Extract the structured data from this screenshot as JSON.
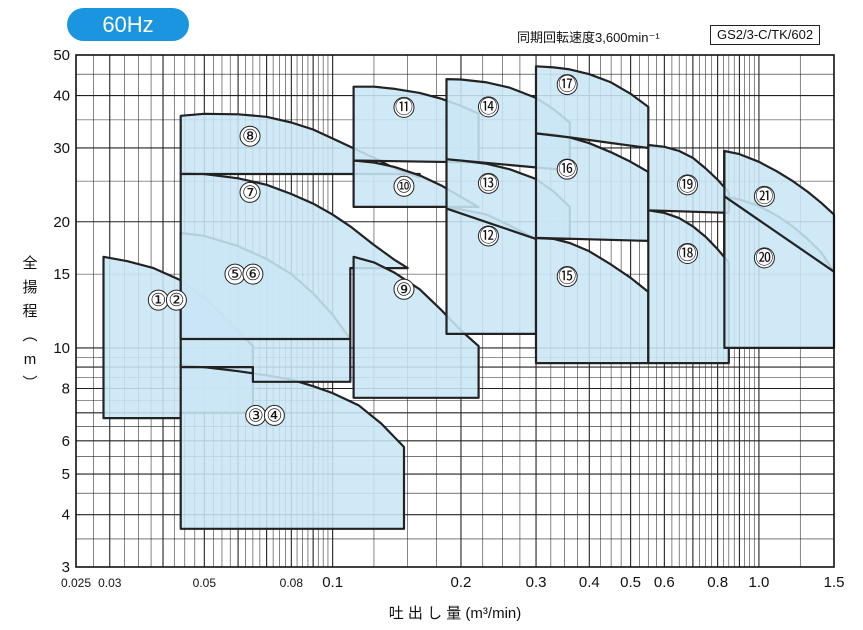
{
  "badge_label": "60Hz",
  "speed_label": "同期回転速度3,600min⁻¹",
  "model_label": "GS2/3-C/TK/602",
  "colors": {
    "badge": "#1a95e0",
    "region_fill": "#c9e6f6",
    "region_stroke": "#222222",
    "grid": "#222222"
  },
  "chart_data": {
    "type": "area",
    "title": "",
    "xlabel": "吐 出 し 量 (m³/min)",
    "ylabel": "全 揚 程 (m)",
    "x_scale": "log",
    "y_scale": "log",
    "xlim": [
      0.025,
      1.5
    ],
    "ylim": [
      3,
      50
    ],
    "grid": true,
    "x_ticks": [
      {
        "value": 0.025,
        "label": "0.025"
      },
      {
        "value": 0.03,
        "label": "0.03"
      },
      {
        "value": 0.05,
        "label": "0.05"
      },
      {
        "value": 0.08,
        "label": "0.08"
      },
      {
        "value": 0.1,
        "label": "0.1"
      },
      {
        "value": 0.2,
        "label": "0.2"
      },
      {
        "value": 0.3,
        "label": "0.3"
      },
      {
        "value": 0.4,
        "label": "0.4"
      },
      {
        "value": 0.5,
        "label": "0.5"
      },
      {
        "value": 0.6,
        "label": "0.6"
      },
      {
        "value": 0.8,
        "label": "0.8"
      },
      {
        "value": 1.0,
        "label": "1.0"
      },
      {
        "value": 1.5,
        "label": "1.5"
      }
    ],
    "y_ticks": [
      {
        "value": 3,
        "label": "3"
      },
      {
        "value": 4,
        "label": "4"
      },
      {
        "value": 5,
        "label": "5"
      },
      {
        "value": 6,
        "label": "6"
      },
      {
        "value": 8,
        "label": "8"
      },
      {
        "value": 10,
        "label": "10"
      },
      {
        "value": 15,
        "label": "15"
      },
      {
        "value": 20,
        "label": "20"
      },
      {
        "value": 30,
        "label": "30"
      },
      {
        "value": 40,
        "label": "40"
      },
      {
        "value": 50,
        "label": "50"
      }
    ],
    "regions": [
      {
        "labels": [
          "①",
          "②"
        ],
        "label_at": [
          [
            0.039,
            13.0
          ],
          [
            0.043,
            13.0
          ]
        ],
        "x": [
          0.029,
          0.033,
          0.038,
          0.044,
          0.05,
          0.056,
          0.061,
          0.065,
          0.065,
          0.044,
          0.044,
          0.029
        ],
        "y": [
          16.5,
          16.1,
          15.5,
          14.5,
          13.2,
          11.8,
          10.8,
          10.1,
          7.0,
          7.0,
          6.8,
          6.8
        ]
      },
      {
        "labels": [
          "③",
          "④"
        ],
        "label_at": [
          [
            0.066,
            6.9
          ],
          [
            0.073,
            6.9
          ]
        ],
        "x": [
          0.044,
          0.05,
          0.06,
          0.07,
          0.08,
          0.09,
          0.1,
          0.115,
          0.13,
          0.147,
          0.147,
          0.044
        ],
        "y": [
          9.1,
          9.0,
          8.8,
          8.6,
          8.4,
          8.1,
          7.8,
          7.3,
          6.6,
          5.8,
          3.7,
          3.7
        ]
      },
      {
        "labels": [
          "⑤",
          "⑥"
        ],
        "label_at": [
          [
            0.059,
            15.0
          ],
          [
            0.065,
            15.0
          ]
        ],
        "x": [
          0.044,
          0.05,
          0.06,
          0.07,
          0.08,
          0.09,
          0.1,
          0.11,
          0.11,
          0.065,
          0.065,
          0.044
        ],
        "y": [
          18.8,
          18.5,
          17.5,
          16.3,
          15.0,
          13.5,
          12.0,
          10.5,
          8.3,
          8.3,
          9.0,
          9.0
        ]
      },
      {
        "labels": [
          "⑦"
        ],
        "label_at": [
          [
            0.064,
            23.5
          ]
        ],
        "x": [
          0.044,
          0.05,
          0.06,
          0.07,
          0.08,
          0.09,
          0.1,
          0.11,
          0.125,
          0.14,
          0.15,
          0.11,
          0.11,
          0.044
        ],
        "y": [
          26.2,
          26.0,
          25.4,
          24.5,
          23.3,
          22.1,
          20.8,
          19.5,
          17.6,
          16.2,
          15.5,
          15.5,
          10.5,
          10.5
        ]
      },
      {
        "labels": [
          "⑧"
        ],
        "label_at": [
          [
            0.064,
            32.0
          ]
        ],
        "x": [
          0.044,
          0.05,
          0.06,
          0.07,
          0.08,
          0.09,
          0.1,
          0.11,
          0.125,
          0.14,
          0.16,
          0.16,
          0.044
        ],
        "y": [
          35.8,
          36.2,
          36.1,
          35.6,
          34.5,
          33.2,
          31.6,
          30.2,
          28.4,
          26.8,
          25.5,
          26.0,
          26.0
        ]
      },
      {
        "labels": [
          "⑨"
        ],
        "label_at": [
          [
            0.147,
            13.8
          ]
        ],
        "x": [
          0.112,
          0.125,
          0.14,
          0.16,
          0.18,
          0.2,
          0.22,
          0.22,
          0.112
        ],
        "y": [
          16.5,
          16.0,
          15.1,
          13.8,
          12.3,
          11.0,
          10.1,
          7.6,
          7.6
        ]
      },
      {
        "labels": [
          "⑩"
        ],
        "label_at": [
          [
            0.147,
            24.3
          ]
        ],
        "x": [
          0.112,
          0.125,
          0.14,
          0.16,
          0.18,
          0.2,
          0.22,
          0.112
        ],
        "y": [
          28.0,
          27.7,
          27.0,
          25.8,
          24.4,
          22.9,
          21.7,
          21.7
        ]
      },
      {
        "labels": [
          "⑪"
        ],
        "label_at": [
          [
            0.147,
            37.5
          ]
        ],
        "x": [
          0.112,
          0.125,
          0.14,
          0.16,
          0.18,
          0.2,
          0.22,
          0.22,
          0.112
        ],
        "y": [
          42.0,
          42.0,
          41.5,
          40.6,
          39.3,
          37.8,
          36.2,
          27.7,
          28.0
        ]
      },
      {
        "labels": [
          "⑫"
        ],
        "label_at": [
          [
            0.232,
            18.5
          ]
        ],
        "x": [
          0.185,
          0.2,
          0.23,
          0.26,
          0.29,
          0.3,
          0.3,
          0.22,
          0.22,
          0.185
        ],
        "y": [
          21.5,
          21.4,
          20.8,
          19.6,
          18.5,
          18.2,
          10.8,
          10.8,
          10.8,
          10.8
        ]
      },
      {
        "labels": [
          "⑬"
        ],
        "label_at": [
          [
            0.232,
            24.7
          ]
        ],
        "x": [
          0.185,
          0.2,
          0.23,
          0.26,
          0.3,
          0.33,
          0.36,
          0.36,
          0.3,
          0.185
        ],
        "y": [
          28.2,
          28.0,
          27.5,
          26.7,
          25.3,
          23.6,
          21.7,
          18.2,
          18.2,
          21.5
        ]
      },
      {
        "labels": [
          "⑭"
        ],
        "label_at": [
          [
            0.232,
            37.6
          ]
        ],
        "x": [
          0.185,
          0.2,
          0.23,
          0.26,
          0.3,
          0.33,
          0.36,
          0.36,
          0.185
        ],
        "y": [
          43.8,
          43.7,
          43.0,
          41.8,
          39.5,
          37.1,
          34.5,
          26.5,
          28.2
        ]
      },
      {
        "labels": [
          "⑮"
        ],
        "label_at": [
          [
            0.355,
            14.8
          ]
        ],
        "x": [
          0.3,
          0.33,
          0.36,
          0.4,
          0.45,
          0.5,
          0.55,
          0.55,
          0.3
        ],
        "y": [
          18.3,
          18.2,
          17.8,
          17.0,
          15.8,
          14.7,
          13.6,
          9.2,
          9.2
        ]
      },
      {
        "labels": [
          "⑯"
        ],
        "label_at": [
          [
            0.355,
            26.7
          ]
        ],
        "x": [
          0.3,
          0.33,
          0.36,
          0.4,
          0.45,
          0.5,
          0.55,
          0.55,
          0.3
        ],
        "y": [
          32.5,
          32.3,
          31.8,
          30.8,
          29.3,
          27.8,
          26.3,
          18.0,
          18.3
        ]
      },
      {
        "labels": [
          "⑰"
        ],
        "label_at": [
          [
            0.355,
            42.5
          ]
        ],
        "x": [
          0.3,
          0.33,
          0.36,
          0.4,
          0.45,
          0.5,
          0.55,
          0.55,
          0.36,
          0.3
        ],
        "y": [
          47.0,
          46.7,
          46.2,
          45.0,
          43.0,
          40.4,
          37.6,
          30.0,
          31.8,
          32.5
        ]
      },
      {
        "labels": [
          "⑱"
        ],
        "label_at": [
          [
            0.68,
            16.8
          ]
        ],
        "x": [
          0.55,
          0.6,
          0.65,
          0.7,
          0.75,
          0.8,
          0.85,
          0.85,
          0.55
        ],
        "y": [
          21.3,
          21.0,
          20.4,
          19.5,
          18.4,
          17.2,
          16.0,
          9.2,
          9.2
        ]
      },
      {
        "labels": [
          "⑲"
        ],
        "label_at": [
          [
            0.68,
            24.5
          ]
        ],
        "x": [
          0.55,
          0.6,
          0.65,
          0.7,
          0.75,
          0.8,
          0.85,
          0.85,
          0.55
        ],
        "y": [
          30.5,
          30.2,
          29.5,
          28.4,
          26.8,
          25.2,
          23.5,
          21.0,
          21.3
        ]
      },
      {
        "labels": [
          "⑳"
        ],
        "label_at": [
          [
            1.03,
            16.4
          ]
        ],
        "x": [
          0.83,
          0.9,
          1.0,
          1.1,
          1.2,
          1.3,
          1.4,
          1.5,
          1.5,
          0.83
        ],
        "y": [
          23.0,
          22.6,
          21.8,
          20.7,
          19.5,
          18.2,
          16.9,
          15.2,
          10.0,
          10.0
        ]
      },
      {
        "labels": [
          "㉑"
        ],
        "label_at": [
          [
            1.03,
            23.0
          ]
        ],
        "x": [
          0.83,
          0.9,
          1.0,
          1.1,
          1.2,
          1.3,
          1.4,
          1.5,
          1.5,
          0.83
        ],
        "y": [
          29.5,
          29.0,
          27.8,
          26.4,
          25.0,
          23.6,
          22.2,
          20.8,
          15.2,
          23.0
        ]
      }
    ]
  }
}
